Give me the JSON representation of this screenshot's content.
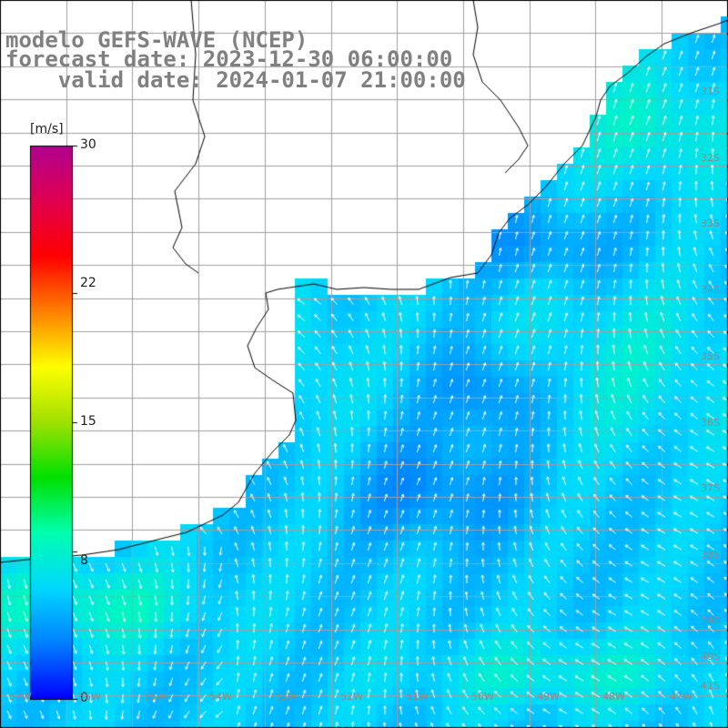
{
  "header": {
    "line1": "modelo GEFS-WAVE (NCEP)",
    "line2": "forecast date: 2023-12-30 06:00:00",
    "line3": "    valid date: 2024-01-07 21:00:00"
  },
  "colorbar": {
    "unit": "[m/s]",
    "min": 0,
    "max": 30,
    "ticks": [
      "30",
      "22",
      "15",
      "8",
      "0"
    ],
    "tick_values": [
      30,
      22,
      15,
      8,
      0
    ],
    "colors": [
      "#0000ff",
      "#0080ff",
      "#00d8ff",
      "#00ffb0",
      "#00e000",
      "#a0e000",
      "#ffff00",
      "#ff8000",
      "#ff0000",
      "#e00050",
      "#b00090"
    ]
  },
  "map": {
    "field": "wind speed",
    "land_color": "#ffffff",
    "grid_color": "#a0a0a0",
    "lat_labels": [
      "31S",
      "32S",
      "33S",
      "34S",
      "35S",
      "36S",
      "37S",
      "38S",
      "39S",
      "40S",
      "41S"
    ],
    "lon_labels": [
      "57W",
      "56W",
      "55W",
      "54W",
      "53W",
      "52W",
      "51W",
      "50W",
      "49W",
      "48W",
      "47W"
    ]
  }
}
